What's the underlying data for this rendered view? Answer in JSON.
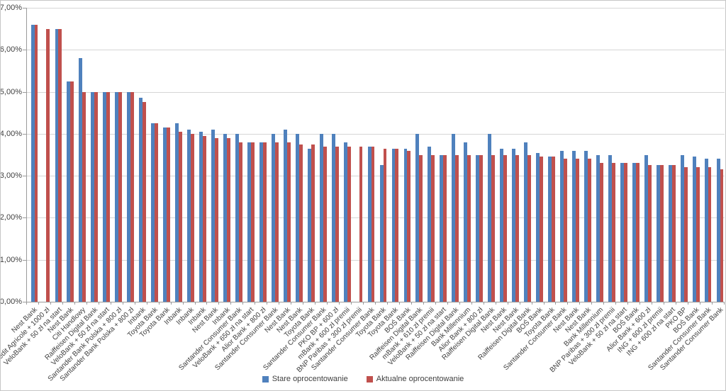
{
  "chart_data": {
    "type": "bar",
    "title": "",
    "xlabel": "",
    "ylabel": "",
    "ylim": [
      0,
      7
    ],
    "grid": true,
    "legend_position": "bottom",
    "ytick_labels": [
      "7,00%",
      "6,00%",
      "5,00%",
      "4,00%",
      "3,00%",
      "2,00%",
      "1,00%",
      "0,00%"
    ],
    "categories": [
      "Nest Bank",
      "Credit Agricole + 1000 zł",
      "VeloBank + 50 zł na start",
      "Nest Bank",
      "Citi Handlowy",
      "Raiffeisen Digital Bank",
      "VeloBank + 50 zł na start",
      "Santander Bank Polska + 800 zł",
      "Santander Bank Polska + 800 zł",
      "Inbank",
      "Toyota Bank",
      "Toyota Bank",
      "Inbank",
      "Inbank",
      "Inbank",
      "Nest Bank",
      "Inbank",
      "Santander Consumer Bank",
      "VeloBank + 650 zł na start",
      "Alior Bank + 800 zł",
      "Santander Consumer Bank",
      "Nest Bank",
      "Nest Bank",
      "Toyota Bank",
      "Santander Consumer Bank",
      "PKO BP + 600 zł",
      "mBank + 600 zł premii",
      "BNP Paribas + 300 zł premii",
      "Santander Consumer Bank",
      "Toyota Bank",
      "Toyota Bank",
      "BOŚ Bank",
      "Raiffeisen Digital Bank",
      "mBank + 610 zł premii",
      "VeloBank + 50 zł na start",
      "Raiffeisen Digital Bank",
      "Bank Millennium",
      "Alior Bank + 800 zł",
      "Raiffeisen Digital Bank",
      "Nest Bank",
      "Nest Bank",
      "Raiffeisen Digital Bank",
      "BOŚ Bank",
      "Toyota Bank",
      "Santander Consumer Bank",
      "Nest Bank",
      "Nest Bank",
      "Bank Millennium",
      "BNP Paribas + 300 zł premii",
      "VeloBank + 50 zł na start",
      "BOŚ Bank",
      "Alior Bank + 600 zł",
      "ING + 600 zł premii",
      "ING + 600 zł na start",
      "PKO BP",
      "BOŚ Bank",
      "Santander Consumer Bank",
      "Santander Consumer Bank"
    ],
    "series": [
      {
        "name": "Stare oprocentowanie",
        "color": "#4F81BD",
        "values": [
          6.6,
          null,
          6.5,
          5.25,
          5.8,
          5.0,
          5.0,
          5.0,
          5.0,
          4.85,
          4.25,
          4.15,
          4.25,
          4.1,
          4.05,
          4.1,
          4.0,
          4.0,
          3.8,
          3.8,
          4.0,
          4.1,
          4.0,
          3.65,
          4.0,
          4.0,
          3.8,
          null,
          3.7,
          3.25,
          3.65,
          3.65,
          4.0,
          3.7,
          3.5,
          4.0,
          3.8,
          3.5,
          4.0,
          3.65,
          3.65,
          3.8,
          3.55,
          3.45,
          3.6,
          3.6,
          3.6,
          3.5,
          3.5,
          3.3,
          3.3,
          3.5,
          3.25,
          3.25,
          3.5,
          3.45,
          3.4,
          3.4
        ]
      },
      {
        "name": "Aktualne oprocentowanie",
        "color": "#C0504D",
        "values": [
          6.6,
          6.5,
          6.5,
          5.25,
          5.0,
          5.0,
          5.0,
          5.0,
          5.0,
          4.75,
          4.25,
          4.15,
          4.05,
          4.0,
          3.95,
          3.9,
          3.9,
          3.8,
          3.8,
          3.8,
          3.8,
          3.8,
          3.75,
          3.75,
          3.7,
          3.7,
          3.7,
          3.7,
          3.7,
          3.65,
          3.65,
          3.6,
          3.5,
          3.5,
          3.5,
          3.5,
          3.5,
          3.5,
          3.5,
          3.5,
          3.5,
          3.5,
          3.45,
          3.45,
          3.4,
          3.4,
          3.4,
          3.3,
          3.3,
          3.3,
          3.3,
          3.25,
          3.25,
          3.25,
          3.2,
          3.2,
          3.2,
          3.15
        ]
      }
    ]
  },
  "legend": {
    "stare_label": "Stare oprocentowanie",
    "aktualne_label": "Aktualne oprocentowanie"
  }
}
